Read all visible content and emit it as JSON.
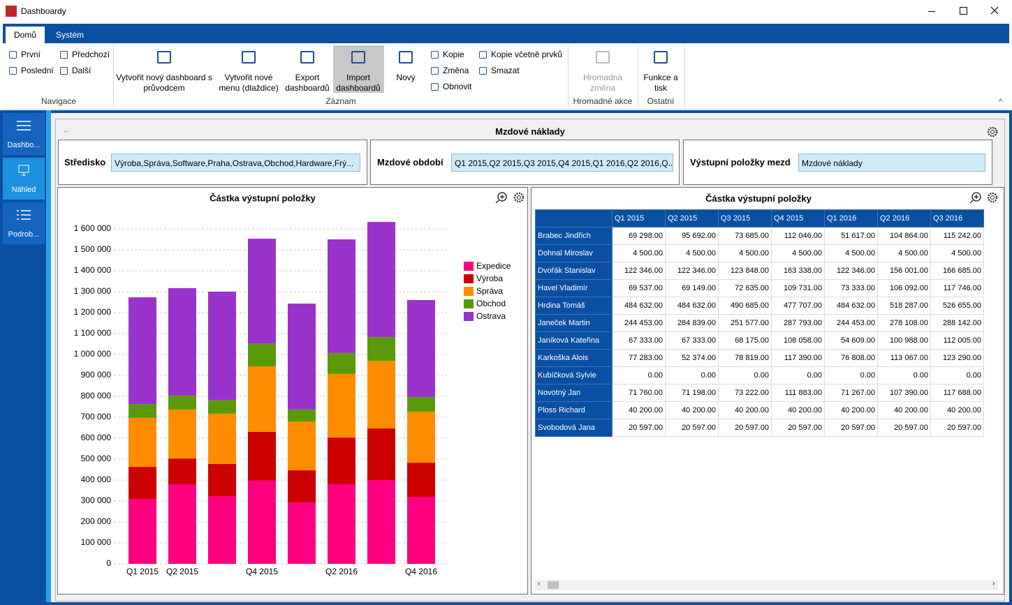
{
  "window": {
    "title": "Dashboardy"
  },
  "ribbon": {
    "tabs": [
      "Domů",
      "Systém"
    ],
    "groups": [
      {
        "label": "Navigace",
        "buttons": [
          "První",
          "Předchozí",
          "Poslední",
          "Další"
        ]
      },
      {
        "label": "Záznam",
        "buttons": [
          "Vytvořit nový dashboard s průvodcem",
          "Vytvořit nové menu (dlaždice)",
          "Export dashboardů",
          "Import dashboardů",
          "Nový",
          "Kopie",
          "Změna",
          "Obnovit",
          "Kopie včetně prvků",
          "Smazat"
        ]
      },
      {
        "label": "Hromadné akce",
        "buttons": [
          "Hromadná změna"
        ]
      },
      {
        "label": "Ostatní",
        "buttons": [
          "Funkce a tisk"
        ]
      }
    ]
  },
  "sidebar": [
    "Dashbo...",
    "Náhled",
    "Podrob..."
  ],
  "dashboard": {
    "title": "Mzdové náklady",
    "filters": [
      {
        "label": "Středisko",
        "value": "Výroba,Správa,Software,Praha,Ostrava,Obchod,Hardware,Frý..."
      },
      {
        "label": "Mzdové období",
        "value": "Q1 2015,Q2 2015,Q3 2015,Q4 2015,Q1 2016,Q2 2016,Q..."
      },
      {
        "label": "Výstupní položky mezd",
        "value": "Mzdové náklady"
      }
    ]
  },
  "chart_data": {
    "type": "bar",
    "stacked": true,
    "title": "Částka výstupní položky",
    "categories": [
      "Q1 2015",
      "Q2 2015",
      null,
      "Q4 2015",
      null,
      "Q2 2016",
      null,
      "Q4 2016"
    ],
    "series": [
      {
        "name": "Expedice",
        "color": "#ff0080",
        "values": [
          310000,
          380000,
          323000,
          397000,
          293000,
          380000,
          400000,
          320000
        ]
      },
      {
        "name": "Výroba",
        "color": "#cc0000",
        "values": [
          153000,
          123000,
          154000,
          233000,
          154000,
          223000,
          247000,
          163000
        ]
      },
      {
        "name": "Správa",
        "color": "#ff8c00",
        "values": [
          234000,
          234000,
          240000,
          313000,
          233000,
          304000,
          323000,
          244000
        ]
      },
      {
        "name": "Obchod",
        "color": "#5a9a08",
        "values": [
          66000,
          66000,
          66000,
          110000,
          57000,
          100000,
          113000,
          70000
        ]
      },
      {
        "name": "Ostrava",
        "color": "#9933cc",
        "values": [
          510000,
          514000,
          517000,
          500000,
          506000,
          543000,
          550000,
          463000
        ]
      }
    ],
    "ylim": [
      0,
      1650000
    ],
    "yticks": [
      0,
      {
        "value": 100000,
        "label": "100 000"
      },
      {
        "value": 200000,
        "label": "200 000"
      },
      {
        "value": 300000,
        "label": "300 000"
      },
      {
        "value": 400000,
        "label": "400 000"
      },
      {
        "value": 500000,
        "label": "500 000"
      },
      {
        "value": 600000,
        "label": "600 000"
      },
      {
        "value": 700000,
        "label": "700 000"
      },
      {
        "value": 800000,
        "label": "800 000"
      },
      {
        "value": 900000,
        "label": "900 000"
      },
      {
        "value": 1000000,
        "label": "1 000 000"
      },
      {
        "value": 1100000,
        "label": "1 100 000"
      },
      {
        "value": 1200000,
        "label": "1 200 000"
      },
      {
        "value": 1300000,
        "label": "1 300 000"
      },
      {
        "value": 1400000,
        "label": "1 400 000"
      },
      {
        "value": 1500000,
        "label": "1 500 000"
      },
      {
        "value": 1600000,
        "label": "1 600 000"
      }
    ],
    "grid": true
  },
  "table": {
    "title": "Částka výstupní položky",
    "columns": [
      "Q1 2015",
      "Q2 2015",
      "Q3 2015",
      "Q4 2015",
      "Q1 2016",
      "Q2 2016",
      "Q3 2016"
    ],
    "rows": [
      {
        "name": "Brabec Jindřich",
        "values": [
          "69 298.00",
          "95 692.00",
          "73 685.00",
          "112 046.00",
          "51 617.00",
          "104 864.00",
          "115 242.00"
        ]
      },
      {
        "name": "Dohnal Miroslav",
        "values": [
          "4 500.00",
          "4 500.00",
          "4 500.00",
          "4 500.00",
          "4 500.00",
          "4 500.00",
          "4 500.00"
        ]
      },
      {
        "name": "Dvořák Stanislav",
        "values": [
          "122 346.00",
          "122 346.00",
          "123 848.00",
          "163 338.00",
          "122 346.00",
          "156 001.00",
          "166 685.00"
        ]
      },
      {
        "name": "Havel Vladimír",
        "values": [
          "69 537.00",
          "69 149.00",
          "72 635.00",
          "109 731.00",
          "73 333.00",
          "106 092.00",
          "117 746.00"
        ]
      },
      {
        "name": "Hrdina Tomáš",
        "values": [
          "484 632.00",
          "484 632.00",
          "490 685.00",
          "477 707.00",
          "484 632.00",
          "518 287.00",
          "526 655.00"
        ]
      },
      {
        "name": "Janeček Martin",
        "values": [
          "244 453.00",
          "284 839.00",
          "251 577.00",
          "287 793.00",
          "244 453.00",
          "278 108.00",
          "288 142.00"
        ]
      },
      {
        "name": "Janíková Kateřina",
        "values": [
          "67 333.00",
          "67 333.00",
          "68 175.00",
          "108 058.00",
          "54 609.00",
          "100 988.00",
          "112 005.00"
        ]
      },
      {
        "name": "Karkoška Alois",
        "values": [
          "77 283.00",
          "52 374.00",
          "78 819.00",
          "117 390.00",
          "76 808.00",
          "113 067.00",
          "123 290.00"
        ]
      },
      {
        "name": "Kubíčková Sylvie",
        "values": [
          "0.00",
          "0.00",
          "0.00",
          "0.00",
          "0.00",
          "0.00",
          "0.00"
        ]
      },
      {
        "name": "Novotný Jan",
        "values": [
          "71 760.00",
          "71 198.00",
          "73 222.00",
          "111 883.00",
          "71 267.00",
          "107 390.00",
          "117 688.00"
        ]
      },
      {
        "name": "Ploss Richard",
        "values": [
          "40 200.00",
          "40 200.00",
          "40 200.00",
          "40 200.00",
          "40 200.00",
          "40 200.00",
          "40 200.00"
        ]
      },
      {
        "name": "Svobodová Jana",
        "values": [
          "20 597.00",
          "20 597.00",
          "20 597.00",
          "20 597.00",
          "20 597.00",
          "20 597.00",
          "20 597.00"
        ]
      }
    ]
  }
}
